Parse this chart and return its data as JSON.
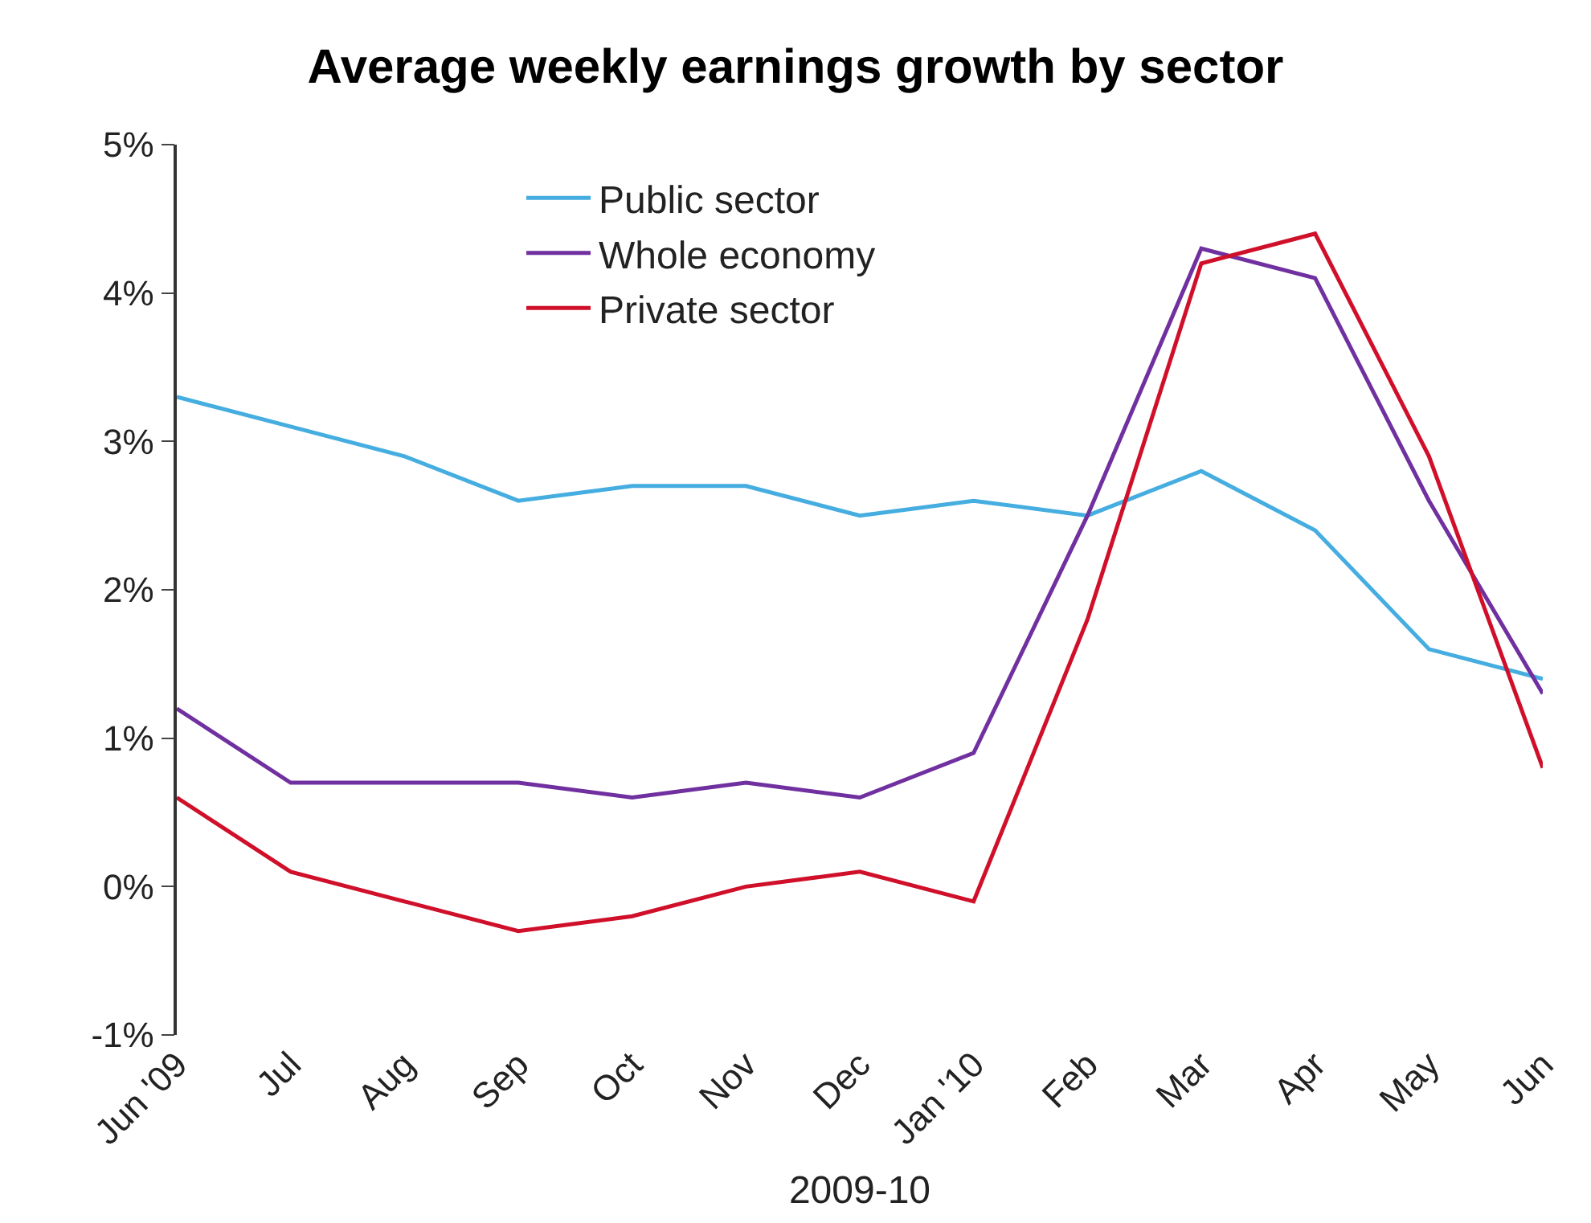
{
  "chart_data": {
    "type": "line",
    "title": "Average weekly earnings growth by sector",
    "xlabel": "2009-10",
    "categories": [
      "Jun '09",
      "Jul",
      "Aug",
      "Sep",
      "Oct",
      "Nov",
      "Dec",
      "Jan '10",
      "Feb",
      "Mar",
      "Apr",
      "May",
      "Jun"
    ],
    "series": [
      {
        "name": "Public sector",
        "color": "#45ade0",
        "values": [
          3.3,
          3.1,
          2.9,
          2.6,
          2.7,
          2.7,
          2.5,
          2.6,
          2.5,
          2.8,
          2.4,
          1.6,
          1.4
        ]
      },
      {
        "name": "Whole economy",
        "color": "#7030a0",
        "values": [
          1.2,
          0.7,
          0.7,
          0.7,
          0.6,
          0.7,
          0.6,
          0.9,
          2.5,
          4.3,
          4.1,
          2.6,
          1.3
        ]
      },
      {
        "name": "Private sector",
        "color": "#d0102a",
        "values": [
          0.6,
          0.1,
          -0.1,
          -0.3,
          -0.2,
          0.0,
          0.1,
          -0.1,
          1.8,
          4.2,
          4.4,
          2.9,
          0.8
        ]
      }
    ],
    "ylim": [
      -1,
      5
    ],
    "yticks": [
      {
        "value": -1,
        "label": "-1%"
      },
      {
        "value": 0,
        "label": "0%"
      },
      {
        "value": 1,
        "label": "1%"
      },
      {
        "value": 2,
        "label": "2%"
      },
      {
        "value": 3,
        "label": "3%"
      },
      {
        "value": 4,
        "label": "4%"
      },
      {
        "value": 5,
        "label": "5%"
      }
    ],
    "legend": "top left",
    "marker": "none",
    "line_style": "solid"
  }
}
